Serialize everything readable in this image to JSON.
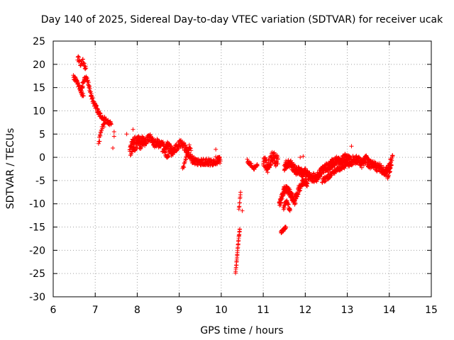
{
  "chart_data": {
    "type": "scatter",
    "title": "Day 140 of 2025, Sidereal Day-to-day VTEC variation (SDTVAR) for receiver ucak",
    "xlabel": "GPS time / hours",
    "ylabel": "SDTVAR / TECUs",
    "xlim": [
      6,
      15
    ],
    "ylim": [
      -30,
      25
    ],
    "xticks": [
      6,
      7,
      8,
      9,
      10,
      11,
      12,
      13,
      14,
      15
    ],
    "yticks": [
      25,
      20,
      15,
      10,
      5,
      0,
      -5,
      -10,
      -15,
      -20,
      -25,
      -30
    ],
    "grid": true,
    "marker": "+",
    "color": "#ff0000",
    "segments": [
      {
        "points": [
          [
            6.48,
            17.2
          ],
          [
            6.53,
            16.8
          ],
          [
            6.58,
            16.0
          ],
          [
            6.62,
            15.2
          ],
          [
            6.66,
            14.5
          ],
          [
            6.7,
            15.6
          ],
          [
            6.74,
            16.6
          ],
          [
            6.78,
            17.0
          ],
          [
            6.82,
            16.6
          ],
          [
            6.86,
            15.0
          ],
          [
            6.9,
            13.5
          ],
          [
            6.94,
            12.2
          ],
          [
            6.98,
            11.4
          ],
          [
            7.02,
            10.8
          ],
          [
            7.06,
            10.0
          ],
          [
            7.1,
            9.3
          ],
          [
            7.14,
            8.8
          ],
          [
            7.18,
            8.5
          ],
          [
            7.22,
            8.2
          ],
          [
            7.26,
            7.9
          ],
          [
            7.3,
            7.6
          ],
          [
            7.34,
            7.3
          ],
          [
            7.38,
            7.1
          ]
        ],
        "step": 0.006,
        "jitter": 0.5
      },
      {
        "points": [
          [
            6.58,
            21.4
          ],
          [
            6.62,
            20.8
          ],
          [
            6.66,
            20.0
          ],
          [
            6.7,
            20.7
          ],
          [
            6.74,
            19.8
          ],
          [
            6.78,
            19.2
          ]
        ],
        "step": 0.008,
        "jitter": 0.6
      },
      {
        "points": [
          [
            6.64,
            14.8
          ],
          [
            6.68,
            13.8
          ],
          [
            6.72,
            13.2
          ]
        ],
        "step": 0.01,
        "jitter": 0.5
      },
      {
        "points": [
          [
            7.08,
            3.2
          ],
          [
            7.12,
            4.5
          ],
          [
            7.16,
            6.0
          ],
          [
            7.2,
            6.8
          ],
          [
            7.24,
            7.5
          ]
        ],
        "step": 0.008,
        "jitter": 0.6
      },
      {
        "points": [
          [
            7.82,
            2.0
          ],
          [
            7.88,
            3.0
          ],
          [
            7.94,
            3.6
          ],
          [
            8.0,
            4.0
          ],
          [
            8.06,
            3.5
          ],
          [
            8.12,
            3.8
          ],
          [
            8.18,
            3.2
          ],
          [
            8.24,
            4.0
          ],
          [
            8.3,
            4.2
          ],
          [
            8.36,
            3.6
          ],
          [
            8.42,
            2.8
          ],
          [
            8.48,
            3.2
          ],
          [
            8.54,
            2.6
          ],
          [
            8.6,
            2.9
          ],
          [
            8.66,
            2.0
          ],
          [
            8.72,
            2.5
          ],
          [
            8.78,
            2.0
          ],
          [
            8.84,
            1.2
          ],
          [
            8.9,
            1.8
          ],
          [
            8.96,
            2.4
          ],
          [
            9.02,
            3.0
          ],
          [
            9.08,
            2.8
          ],
          [
            9.14,
            2.0
          ],
          [
            9.2,
            1.0
          ],
          [
            9.26,
            0.0
          ],
          [
            9.32,
            -0.5
          ],
          [
            9.38,
            -0.8
          ],
          [
            9.44,
            -1.0
          ],
          [
            9.5,
            -0.9
          ],
          [
            9.56,
            -1.1
          ],
          [
            9.62,
            -0.9
          ],
          [
            9.68,
            -1.0
          ],
          [
            9.74,
            -1.2
          ],
          [
            9.8,
            -1.0
          ],
          [
            9.86,
            -0.7
          ],
          [
            9.92,
            -0.6
          ],
          [
            9.98,
            -0.8
          ]
        ],
        "step": 0.005,
        "jitter": 0.8
      },
      {
        "points": [
          [
            7.84,
            0.8
          ],
          [
            7.9,
            1.6
          ],
          [
            7.96,
            2.2
          ],
          [
            8.02,
            2.7
          ],
          [
            8.08,
            2.4
          ],
          [
            8.14,
            2.8
          ]
        ],
        "step": 0.01,
        "jitter": 0.6
      },
      {
        "points": [
          [
            8.6,
            1.5
          ],
          [
            8.66,
            0.8
          ],
          [
            8.72,
            0.3
          ],
          [
            8.78,
            1.0
          ],
          [
            8.84,
            0.6
          ]
        ],
        "step": 0.01,
        "jitter": 0.5
      },
      {
        "points": [
          [
            9.08,
            -2.5
          ],
          [
            9.12,
            -1.5
          ],
          [
            9.16,
            -0.3
          ],
          [
            9.2,
            1.0
          ],
          [
            9.24,
            2.5
          ],
          [
            9.28,
            1.5
          ]
        ],
        "step": 0.01,
        "jitter": 0.5
      },
      {
        "points": [
          [
            10.34,
            -25.0
          ],
          [
            10.36,
            -23.0
          ],
          [
            10.38,
            -21.0
          ],
          [
            10.4,
            -19.0
          ],
          [
            10.42,
            -17.0
          ],
          [
            10.44,
            -15.5
          ]
        ],
        "step": 0.004,
        "jitter": 0.2
      },
      {
        "points": [
          [
            10.42,
            -11.0
          ],
          [
            10.44,
            -9.5
          ],
          [
            10.46,
            -7.5
          ]
        ],
        "step": 0.005,
        "jitter": 0.3
      },
      {
        "points": [
          [
            10.62,
            -0.8
          ],
          [
            10.68,
            -1.3
          ],
          [
            10.74,
            -2.0
          ],
          [
            10.8,
            -2.4
          ],
          [
            10.86,
            -1.8
          ]
        ],
        "step": 0.008,
        "jitter": 0.4
      },
      {
        "points": [
          [
            11.0,
            -0.5
          ],
          [
            11.05,
            -1.2
          ],
          [
            11.1,
            -2.2
          ],
          [
            11.15,
            -1.0
          ],
          [
            11.2,
            -0.3
          ],
          [
            11.25,
            0.5
          ],
          [
            11.3,
            -1.0
          ],
          [
            11.35,
            -0.4
          ]
        ],
        "step": 0.004,
        "jitter": 1.2
      },
      {
        "points": [
          [
            11.38,
            -10.0
          ],
          [
            11.42,
            -9.2
          ],
          [
            11.46,
            -8.0
          ],
          [
            11.5,
            -7.0
          ],
          [
            11.55,
            -6.8
          ],
          [
            11.6,
            -7.2
          ],
          [
            11.65,
            -7.8
          ],
          [
            11.7,
            -8.8
          ],
          [
            11.75,
            -9.5
          ],
          [
            11.8,
            -8.0
          ],
          [
            11.85,
            -6.8
          ],
          [
            11.9,
            -6.0
          ],
          [
            11.95,
            -5.3
          ],
          [
            12.0,
            -5.0
          ],
          [
            12.05,
            -5.6
          ]
        ],
        "step": 0.004,
        "jitter": 0.8
      },
      {
        "points": [
          [
            11.48,
            -11.0
          ],
          [
            11.52,
            -10.0
          ],
          [
            11.56,
            -9.5
          ],
          [
            11.6,
            -10.5
          ],
          [
            11.64,
            -11.2
          ]
        ],
        "step": 0.006,
        "jitter": 0.5
      },
      {
        "points": [
          [
            11.42,
            -16.2
          ],
          [
            11.46,
            -15.8
          ],
          [
            11.5,
            -15.4
          ],
          [
            11.54,
            -15.0
          ]
        ],
        "step": 0.006,
        "jitter": 0.3
      },
      {
        "points": [
          [
            11.5,
            -2.0
          ],
          [
            11.55,
            -1.5
          ],
          [
            11.6,
            -1.3
          ],
          [
            11.65,
            -1.4
          ],
          [
            11.7,
            -2.0
          ],
          [
            11.75,
            -2.6
          ],
          [
            11.8,
            -3.0
          ],
          [
            11.85,
            -2.8
          ],
          [
            11.9,
            -3.2
          ],
          [
            11.95,
            -3.5
          ],
          [
            12.0,
            -3.2
          ],
          [
            12.05,
            -3.8
          ],
          [
            12.1,
            -4.0
          ],
          [
            12.15,
            -4.6
          ],
          [
            12.2,
            -4.3
          ],
          [
            12.25,
            -4.8
          ],
          [
            12.3,
            -4.0
          ],
          [
            12.35,
            -3.4
          ],
          [
            12.4,
            -2.8
          ],
          [
            12.45,
            -2.4
          ],
          [
            12.5,
            -2.0
          ],
          [
            12.55,
            -2.3
          ],
          [
            12.6,
            -1.6
          ],
          [
            12.65,
            -1.2
          ],
          [
            12.7,
            -1.0
          ],
          [
            12.75,
            -0.6
          ],
          [
            12.8,
            -0.8
          ],
          [
            12.85,
            -1.2
          ],
          [
            12.9,
            -0.5
          ],
          [
            12.95,
            0.0
          ],
          [
            13.0,
            -0.3
          ],
          [
            13.05,
            -0.6
          ],
          [
            13.1,
            -1.0
          ],
          [
            13.15,
            -0.4
          ],
          [
            13.2,
            -0.6
          ],
          [
            13.25,
            -0.4
          ],
          [
            13.3,
            -1.0
          ],
          [
            13.35,
            -1.5
          ],
          [
            13.4,
            -0.8
          ],
          [
            13.45,
            -0.4
          ],
          [
            13.5,
            -1.2
          ],
          [
            13.55,
            -1.6
          ],
          [
            13.6,
            -1.2
          ],
          [
            13.65,
            -1.8
          ],
          [
            13.7,
            -2.2
          ],
          [
            13.75,
            -1.8
          ],
          [
            13.8,
            -2.5
          ],
          [
            13.85,
            -3.0
          ],
          [
            13.9,
            -3.2
          ],
          [
            13.95,
            -2.8
          ],
          [
            14.0,
            -1.8
          ],
          [
            14.04,
            -1.0
          ]
        ],
        "step": 0.004,
        "jitter": 0.9
      },
      {
        "points": [
          [
            12.4,
            -5.0
          ],
          [
            12.5,
            -4.6
          ],
          [
            12.6,
            -3.8
          ],
          [
            12.7,
            -3.0
          ],
          [
            12.8,
            -2.5
          ],
          [
            12.9,
            -2.0
          ],
          [
            13.0,
            -1.6
          ],
          [
            13.1,
            -1.5
          ]
        ],
        "step": 0.008,
        "jitter": 0.5
      },
      {
        "points": [
          [
            13.96,
            -4.0
          ],
          [
            14.0,
            -3.0
          ],
          [
            14.04,
            -2.0
          ],
          [
            14.06,
            -0.5
          ],
          [
            14.08,
            0.3
          ]
        ],
        "step": 0.006,
        "jitter": 0.6
      }
    ],
    "outliers": [
      [
        7.45,
        5.5
      ],
      [
        7.45,
        4.5
      ],
      [
        7.42,
        2.0
      ],
      [
        7.75,
        5.0
      ],
      [
        7.9,
        6.0
      ],
      [
        9.87,
        1.7
      ],
      [
        11.88,
        0.0
      ],
      [
        11.95,
        0.2
      ],
      [
        13.1,
        2.4
      ],
      [
        12.6,
        -0.8
      ],
      [
        10.5,
        -11.5
      ]
    ]
  }
}
